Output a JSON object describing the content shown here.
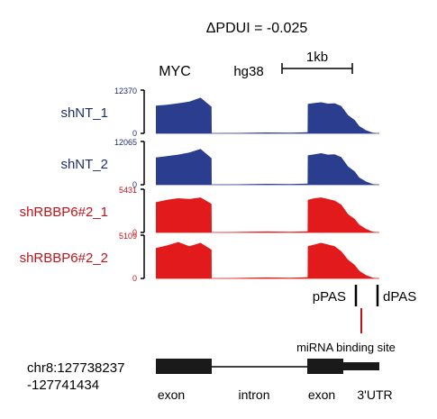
{
  "figure": {
    "title": "ΔPDUI = -0.025",
    "gene": "MYC",
    "genome": "hg38",
    "scalebar_label": "1kb"
  },
  "colors": {
    "control": "#2b3d8f",
    "knockdown": "#e31a1c",
    "control_label": "#1f2f6e",
    "knockdown_label": "#c0141a",
    "mirna_line": "#c0141a",
    "axis": "#000000"
  },
  "chart_data": {
    "type": "area",
    "x_label_position": "bottom",
    "x_units": "relative position along locus (0-100)",
    "x": [
      0,
      5,
      10,
      15,
      20,
      24.9,
      25,
      40,
      50,
      60,
      67.9,
      68,
      71,
      74,
      77,
      80,
      83,
      86,
      89,
      91,
      94,
      97,
      100
    ],
    "series": [
      {
        "name": "shNT_1",
        "group": "control",
        "ymax_label": "12370",
        "ymin_label": "0",
        "ylim": [
          0,
          12370
        ],
        "values": [
          7900,
          8200,
          8600,
          9100,
          10200,
          7600,
          0,
          150,
          250,
          180,
          300,
          8400,
          8700,
          8900,
          8500,
          8600,
          7800,
          5200,
          3800,
          2100,
          900,
          200,
          0
        ]
      },
      {
        "name": "shNT_2",
        "group": "control",
        "ymax_label": "12065",
        "ymin_label": "0",
        "ylim": [
          0,
          12065
        ],
        "values": [
          7600,
          8000,
          8400,
          9000,
          10000,
          7400,
          0,
          150,
          250,
          180,
          300,
          8200,
          8500,
          8800,
          8400,
          8500,
          7700,
          5100,
          3700,
          2000,
          900,
          200,
          0
        ]
      },
      {
        "name": "shRBBP6#2_1",
        "group": "knockdown",
        "ymax_label": "5431",
        "ymin_label": "0",
        "ylim": [
          0,
          5431
        ],
        "values": [
          3800,
          4100,
          4300,
          4200,
          4400,
          3600,
          0,
          80,
          120,
          90,
          150,
          4100,
          4300,
          4400,
          4200,
          4000,
          3500,
          2300,
          1700,
          1000,
          450,
          100,
          0
        ]
      },
      {
        "name": "shRBBP6#2_2",
        "group": "knockdown",
        "ymax_label": "5109",
        "ymin_label": "0",
        "ylim": [
          0,
          5109
        ],
        "values": [
          3600,
          3900,
          4300,
          3800,
          4200,
          3400,
          0,
          80,
          120,
          90,
          150,
          3800,
          4000,
          4200,
          4000,
          3800,
          3200,
          2200,
          1600,
          900,
          400,
          100,
          0
        ]
      }
    ],
    "annotations": {
      "pPAS_label": "pPAS",
      "dPAS_label": "dPAS",
      "mirna_label": "miRNA binding site",
      "coordinate_line1": "chr8:127738237",
      "coordinate_line2": "-127741434",
      "feature_labels": [
        "exon",
        "intron",
        "exon",
        "3'UTR"
      ]
    }
  }
}
